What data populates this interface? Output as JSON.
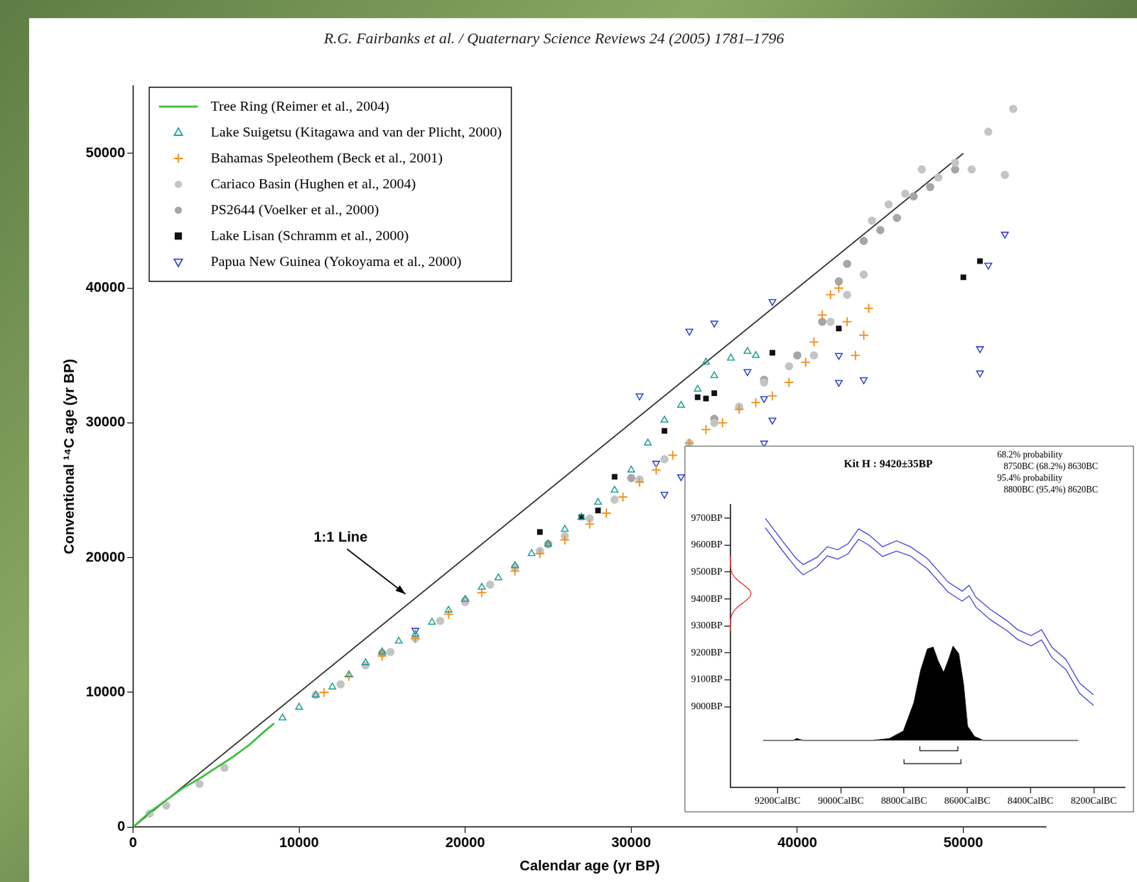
{
  "chart_data": [
    {
      "type": "scatter",
      "title": "R.G. Fairbanks et al. / Quaternary Science Reviews 24 (2005) 1781–1796",
      "x_label": "Calendar age (yr BP)",
      "y_label": "Conventional ¹⁴C age (yr BP)",
      "xlim": [
        0,
        55000
      ],
      "ylim": [
        0,
        55000
      ],
      "xticks": [
        0,
        10000,
        20000,
        30000,
        40000,
        50000
      ],
      "yticks": [
        0,
        10000,
        20000,
        30000,
        40000,
        50000
      ],
      "grid": false,
      "legend": "upper left",
      "series": [
        {
          "name": "Tree Ring (Reimer et al., 2004)",
          "type": "line",
          "line_style": "solid",
          "color": "#3fbf3f",
          "x": [
            0,
            1000,
            2000,
            3000,
            4000,
            5000,
            6000,
            7000,
            8000,
            8500
          ],
          "values": [
            0,
            1100,
            2000,
            2900,
            3600,
            4400,
            5200,
            6100,
            7200,
            7700
          ]
        },
        {
          "name": "Lake Suigetsu (Kitagawa and van der Plicht, 2000)",
          "marker": "triangle",
          "color": "#1f9e8f",
          "x": [
            9000,
            10000,
            11000,
            12000,
            13000,
            14000,
            15000,
            16000,
            17000,
            18000,
            19000,
            20000,
            21000,
            22000,
            23000,
            24000,
            25000,
            26000,
            27000,
            28000,
            29000,
            30000,
            31000,
            32000,
            33000,
            34000,
            34500,
            35000,
            36000,
            37000,
            37500
          ],
          "values": [
            8100,
            8900,
            9800,
            10400,
            11300,
            12200,
            13000,
            13800,
            14300,
            15200,
            16100,
            16900,
            17800,
            18500,
            19400,
            20300,
            21000,
            22100,
            23000,
            24100,
            25000,
            26500,
            28500,
            30200,
            31300,
            32500,
            34500,
            33500,
            34800,
            35300,
            35000
          ]
        },
        {
          "name": "Bahamas Speleothem (Beck et al., 2001)",
          "marker": "plus",
          "color": "#f39019",
          "x": [
            11500,
            13000,
            15000,
            17000,
            19000,
            21000,
            23000,
            24500,
            26000,
            27500,
            28500,
            29500,
            30500,
            31500,
            32500,
            33500,
            34500,
            35500,
            36500,
            37500,
            38500,
            39500,
            40500,
            41000,
            41500,
            42000,
            42500,
            43000,
            43500,
            44000,
            44300
          ],
          "values": [
            10000,
            11200,
            12700,
            14000,
            15800,
            17400,
            19000,
            20300,
            21300,
            22500,
            23300,
            24500,
            25600,
            26500,
            27600,
            28500,
            29500,
            30000,
            31000,
            31500,
            32000,
            33000,
            34500,
            36000,
            38000,
            39500,
            40000,
            37500,
            35000,
            36500,
            38500
          ]
        },
        {
          "name": "Cariaco Basin (Hughen et al., 2004)",
          "marker": "circle",
          "color": "#c4c4c4",
          "x": [
            1000,
            2000,
            4000,
            5500,
            11000,
            12500,
            14000,
            15500,
            17000,
            18500,
            20000,
            21500,
            23000,
            24500,
            26000,
            27500,
            29000,
            30500,
            32000,
            33500,
            35000,
            36500,
            38000,
            39500,
            41000,
            42000,
            43000,
            44000,
            44500,
            45500,
            46500,
            47500,
            48500,
            49500,
            50500,
            51500,
            52500,
            53000
          ],
          "values": [
            1000,
            1600,
            3200,
            4400,
            9800,
            10600,
            12000,
            13000,
            14000,
            15300,
            16700,
            18000,
            19300,
            20500,
            21600,
            22900,
            24300,
            25800,
            27300,
            28500,
            30000,
            31200,
            33000,
            34200,
            35000,
            37500,
            39500,
            41000,
            45000,
            46200,
            47000,
            48800,
            48200,
            49300,
            48800,
            51600,
            48400,
            53300
          ]
        },
        {
          "name": "PS2644 (Voelker et al., 2000)",
          "marker": "circle",
          "color": "#a6a6a6",
          "x": [
            15000,
            20000,
            25000,
            30000,
            35000,
            38000,
            40000,
            41500,
            42500,
            43000,
            44000,
            45000,
            46000,
            47000,
            48000,
            49500
          ],
          "values": [
            12900,
            16800,
            21000,
            25900,
            30300,
            33200,
            35000,
            37500,
            40500,
            41800,
            43500,
            44300,
            45200,
            46800,
            47500,
            48800
          ]
        },
        {
          "name": "Lake Lisan (Schramm et al., 2000)",
          "marker": "square",
          "color": "#111111",
          "x": [
            24500,
            27000,
            28000,
            29000,
            32000,
            34000,
            34500,
            35000,
            38500,
            42500,
            50000,
            51000
          ],
          "values": [
            21900,
            23000,
            23500,
            26000,
            29400,
            31900,
            31800,
            32200,
            35200,
            37000,
            40800,
            42000
          ]
        },
        {
          "name": "Papua New Guinea (Yokoyama et al., 2000)",
          "marker": "triangle_down",
          "color": "#2e3fd0",
          "x": [
            17000,
            30500,
            33500,
            35000,
            38500,
            37000,
            38000,
            38500,
            38000,
            31500,
            32000,
            33000,
            42500,
            42500,
            44000,
            51500,
            52500,
            51000,
            51000
          ],
          "values": [
            14600,
            32000,
            36800,
            37400,
            39000,
            33800,
            31800,
            30200,
            28500,
            27000,
            24700,
            26000,
            35000,
            33000,
            33200,
            41700,
            44000,
            35500,
            33700
          ]
        }
      ],
      "reference_line": {
        "color": "#333333",
        "line_style": "solid",
        "x": [
          0,
          50000
        ],
        "values": [
          0,
          50000
        ]
      },
      "annotations": [
        {
          "text": "1:1 Line",
          "x": 12500,
          "y": 21500,
          "arrow_x": 16400,
          "arrow_y": 17300
        }
      ]
    },
    {
      "type": "line",
      "title": "Kit H : 9420±35BP",
      "annotations": [
        "68.2% probability",
        "8750BC (68.2%) 8630BC",
        "95.4% probability",
        "8800BC (95.4%) 8620BC"
      ],
      "xlim": [
        9350,
        8100
      ],
      "ylim": [
        8700,
        9750
      ],
      "y2lim": [
        -0.5,
        2.5
      ],
      "xticks": [
        {
          "value": 9200,
          "label": "9200CalBC"
        },
        {
          "value": 9000,
          "label": "9000CalBC"
        },
        {
          "value": 8800,
          "label": "8800CalBC"
        },
        {
          "value": 8600,
          "label": "8600CalBC"
        },
        {
          "value": 8400,
          "label": "8400CalBC"
        },
        {
          "value": 8200,
          "label": "8200CalBC"
        }
      ],
      "yticks": [
        {
          "value": 9000,
          "label": "9000BP"
        },
        {
          "value": 9100,
          "label": "9100BP"
        },
        {
          "value": 9200,
          "label": "9200BP"
        },
        {
          "value": 9300,
          "label": "9300BP"
        },
        {
          "value": 9400,
          "label": "9400BP"
        },
        {
          "value": 9500,
          "label": "9500BP"
        },
        {
          "value": 9600,
          "label": "9600BP"
        },
        {
          "value": 9700,
          "label": "9700BP"
        }
      ],
      "grid": false,
      "measurement": {
        "age": 9420,
        "error": 35,
        "color": "#e8201c"
      },
      "ranges": [
        {
          "probability": 68.2,
          "from": 8750,
          "to": 8630
        },
        {
          "probability": 95.4,
          "from": 8800,
          "to": 8620
        }
      ],
      "series": [
        {
          "type": "line",
          "color": "#3b3bd6",
          "x": [
            9239,
            9185,
            9141,
            9119,
            9075,
            9043,
            9010,
            8977,
            8944,
            8911,
            8868,
            8824,
            8780,
            8726,
            8660,
            8616,
            8594,
            8573,
            8529,
            8474,
            8441,
            8398,
            8365,
            8332,
            8288,
            8245,
            8201
          ],
          "values": [
            9700,
            9616,
            9550,
            9528,
            9555,
            9594,
            9583,
            9605,
            9660,
            9638,
            9594,
            9616,
            9594,
            9550,
            9462,
            9429,
            9451,
            9407,
            9363,
            9319,
            9286,
            9264,
            9286,
            9220,
            9176,
            9088,
            9044
          ]
        },
        {
          "type": "line",
          "color": "#3b3bd6",
          "x": [
            9239,
            9185,
            9141,
            9119,
            9075,
            9043,
            9010,
            8977,
            8944,
            8911,
            8868,
            8824,
            8780,
            8726,
            8660,
            8616,
            8594,
            8573,
            8529,
            8474,
            8441,
            8398,
            8365,
            8332,
            8288,
            8245,
            8201
          ],
          "values": [
            9665,
            9580,
            9515,
            9490,
            9520,
            9560,
            9548,
            9568,
            9622,
            9600,
            9558,
            9578,
            9560,
            9512,
            9425,
            9392,
            9412,
            9370,
            9325,
            9282,
            9250,
            9226,
            9248,
            9182,
            9138,
            9050,
            9005
          ]
        },
        {
          "type": "area",
          "color": "#000000",
          "axis": "y2",
          "x": [
            9246,
            9150,
            9140,
            9120,
            9100,
            8900,
            8846,
            8802,
            8769,
            8747,
            8726,
            8708,
            8693,
            8675,
            8660,
            8645,
            8627,
            8612,
            8599,
            8577,
            8562,
            8550,
            8249
          ],
          "values": [
            0,
            0,
            0.02,
            0,
            0,
            0,
            0.02,
            0.1,
            0.4,
            0.75,
            0.97,
            0.99,
            0.85,
            0.72,
            0.85,
            1,
            0.92,
            0.6,
            0.15,
            0.04,
            0.02,
            0,
            0
          ]
        }
      ]
    }
  ]
}
